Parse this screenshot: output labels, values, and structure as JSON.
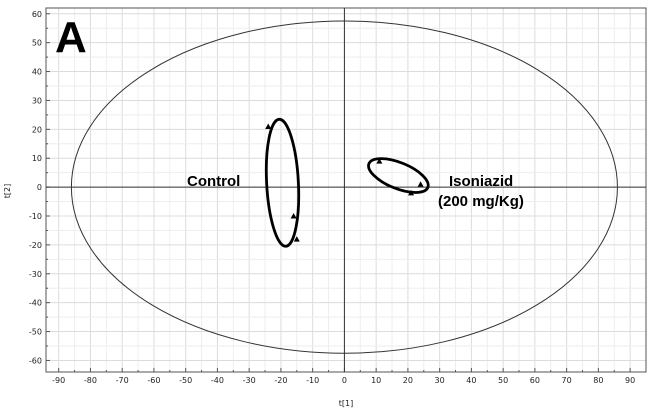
{
  "panel_label": "A",
  "chart_data": {
    "type": "scatter",
    "xlabel": "t[1]",
    "ylabel": "t[2]",
    "xlim": [
      -94,
      95
    ],
    "ylim": [
      -64,
      62
    ],
    "xticks": [
      -90,
      -80,
      -70,
      -60,
      -50,
      -40,
      -30,
      -20,
      -10,
      0,
      10,
      20,
      30,
      40,
      50,
      60,
      70,
      80,
      90
    ],
    "yticks": [
      -60,
      -50,
      -40,
      -30,
      -20,
      -10,
      0,
      10,
      20,
      30,
      40,
      50,
      60
    ],
    "grid": true,
    "marker": "triangle",
    "confidence_ellipse": {
      "center": [
        0,
        0
      ],
      "rx": 86,
      "ry": 57.5
    },
    "groups": [
      {
        "label": "Control",
        "points": [
          {
            "x": -24,
            "y": 21
          },
          {
            "x": -16,
            "y": -10
          },
          {
            "x": -15,
            "y": -18
          }
        ],
        "ellipse": {
          "cx": -19.5,
          "cy": 1.5,
          "rx": 5,
          "ry": 22,
          "angle_deg": -3
        }
      },
      {
        "label": "Isoniazid",
        "label_line2": "(200 mg/Kg)",
        "points": [
          {
            "x": 11,
            "y": 9
          },
          {
            "x": 24,
            "y": 1
          },
          {
            "x": 21,
            "y": -2
          }
        ],
        "ellipse": {
          "cx": 17,
          "cy": 4,
          "rx": 10,
          "ry": 4.5,
          "angle_deg": 22
        }
      }
    ]
  }
}
